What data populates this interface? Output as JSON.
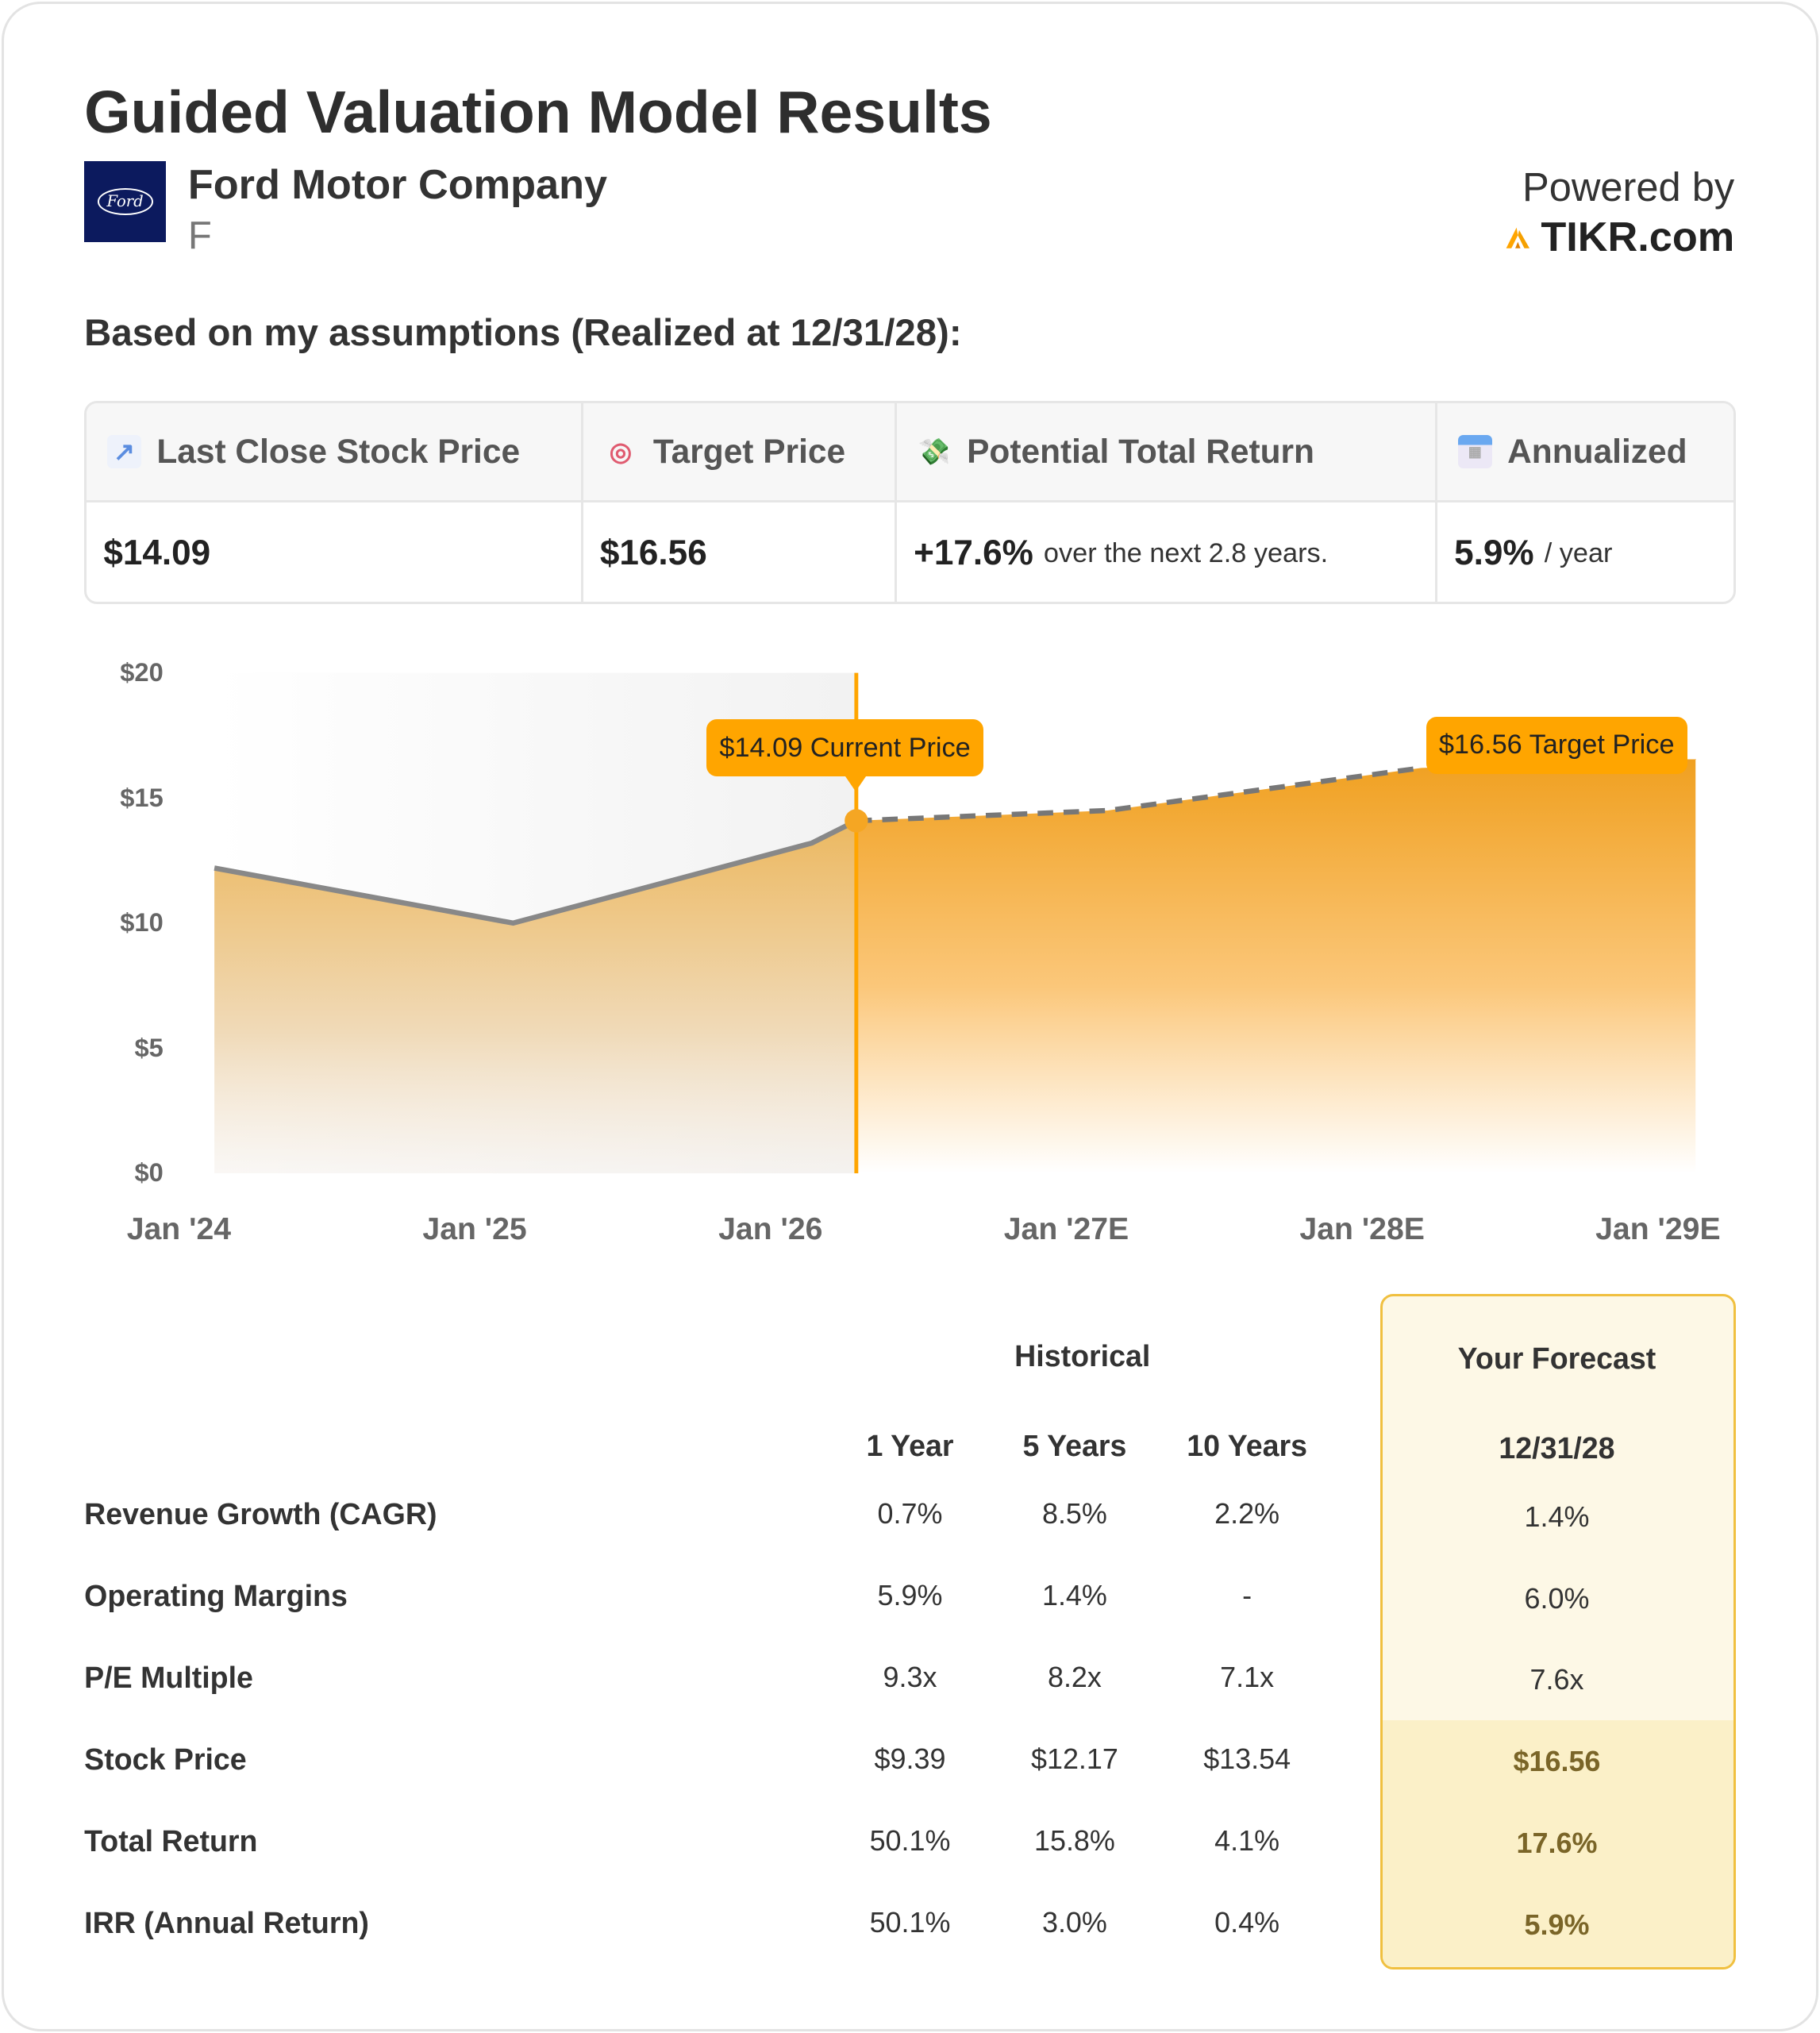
{
  "header": {
    "title": "Guided Valuation Model Results",
    "company": "Ford Motor Company",
    "ticker": "F",
    "logo_text": "Ford",
    "powered_by": "Powered by",
    "brand": "TIKR.com"
  },
  "subtitle": "Based on my assumptions (Realized at 12/31/28):",
  "stats": {
    "headers": [
      {
        "label": "Last Close Stock Price",
        "icon": "chart-increasing-icon"
      },
      {
        "label": "Target Price",
        "icon": "target-icon"
      },
      {
        "label": "Potential Total Return",
        "icon": "money-icon"
      },
      {
        "label": "Annualized",
        "icon": "calendar-icon"
      }
    ],
    "last_close": "$14.09",
    "target": "$16.56",
    "total_return": "+17.6%",
    "total_return_note": "over the next 2.8 years.",
    "annualized": "5.9%",
    "annualized_note": "/ year"
  },
  "colors": {
    "accent": "#ffa500",
    "line": "#888888",
    "forecast_border": "#f0c040"
  },
  "chart_data": {
    "type": "area",
    "ylim": [
      0,
      20
    ],
    "yticks": [
      "$20",
      "$15",
      "$10",
      "$5",
      "$0"
    ],
    "ytick_values": [
      20,
      15,
      10,
      5,
      0
    ],
    "xticks": [
      "Jan '24",
      "Jan '25",
      "Jan '26",
      "Jan '27E",
      "Jan '28E",
      "Jan '29E"
    ],
    "x_unit": "years since Jan 2024",
    "historical": {
      "x": [
        0.12,
        1.13,
        2.14,
        2.29
      ],
      "y": [
        12.2,
        10.0,
        13.2,
        14.09
      ]
    },
    "forecast": {
      "x": [
        2.29,
        3.14,
        4.2,
        5.13
      ],
      "y": [
        14.09,
        14.5,
        16.2,
        16.56
      ]
    },
    "current_label": "$14.09 Current Price",
    "target_label": "$16.56 Target Price"
  },
  "table": {
    "historical_title": "Historical",
    "forecast_title": "Your Forecast",
    "forecast_date": "12/31/28",
    "columns": [
      "1 Year",
      "5 Years",
      "10 Years"
    ],
    "rows": [
      {
        "label": "Revenue Growth (CAGR)",
        "values": [
          "0.7%",
          "8.5%",
          "2.2%"
        ],
        "forecast": "1.4%"
      },
      {
        "label": "Operating Margins",
        "values": [
          "5.9%",
          "1.4%",
          "-"
        ],
        "forecast": "6.0%"
      },
      {
        "label": "P/E Multiple",
        "values": [
          "9.3x",
          "8.2x",
          "7.1x"
        ],
        "forecast": "7.6x"
      },
      {
        "label": "Stock Price",
        "values": [
          "$9.39",
          "$12.17",
          "$13.54"
        ],
        "forecast": "$16.56"
      },
      {
        "label": "Total Return",
        "values": [
          "50.1%",
          "15.8%",
          "4.1%"
        ],
        "forecast": "17.6%"
      },
      {
        "label": "IRR (Annual Return)",
        "values": [
          "50.1%",
          "3.0%",
          "0.4%"
        ],
        "forecast": "5.9%"
      }
    ]
  }
}
